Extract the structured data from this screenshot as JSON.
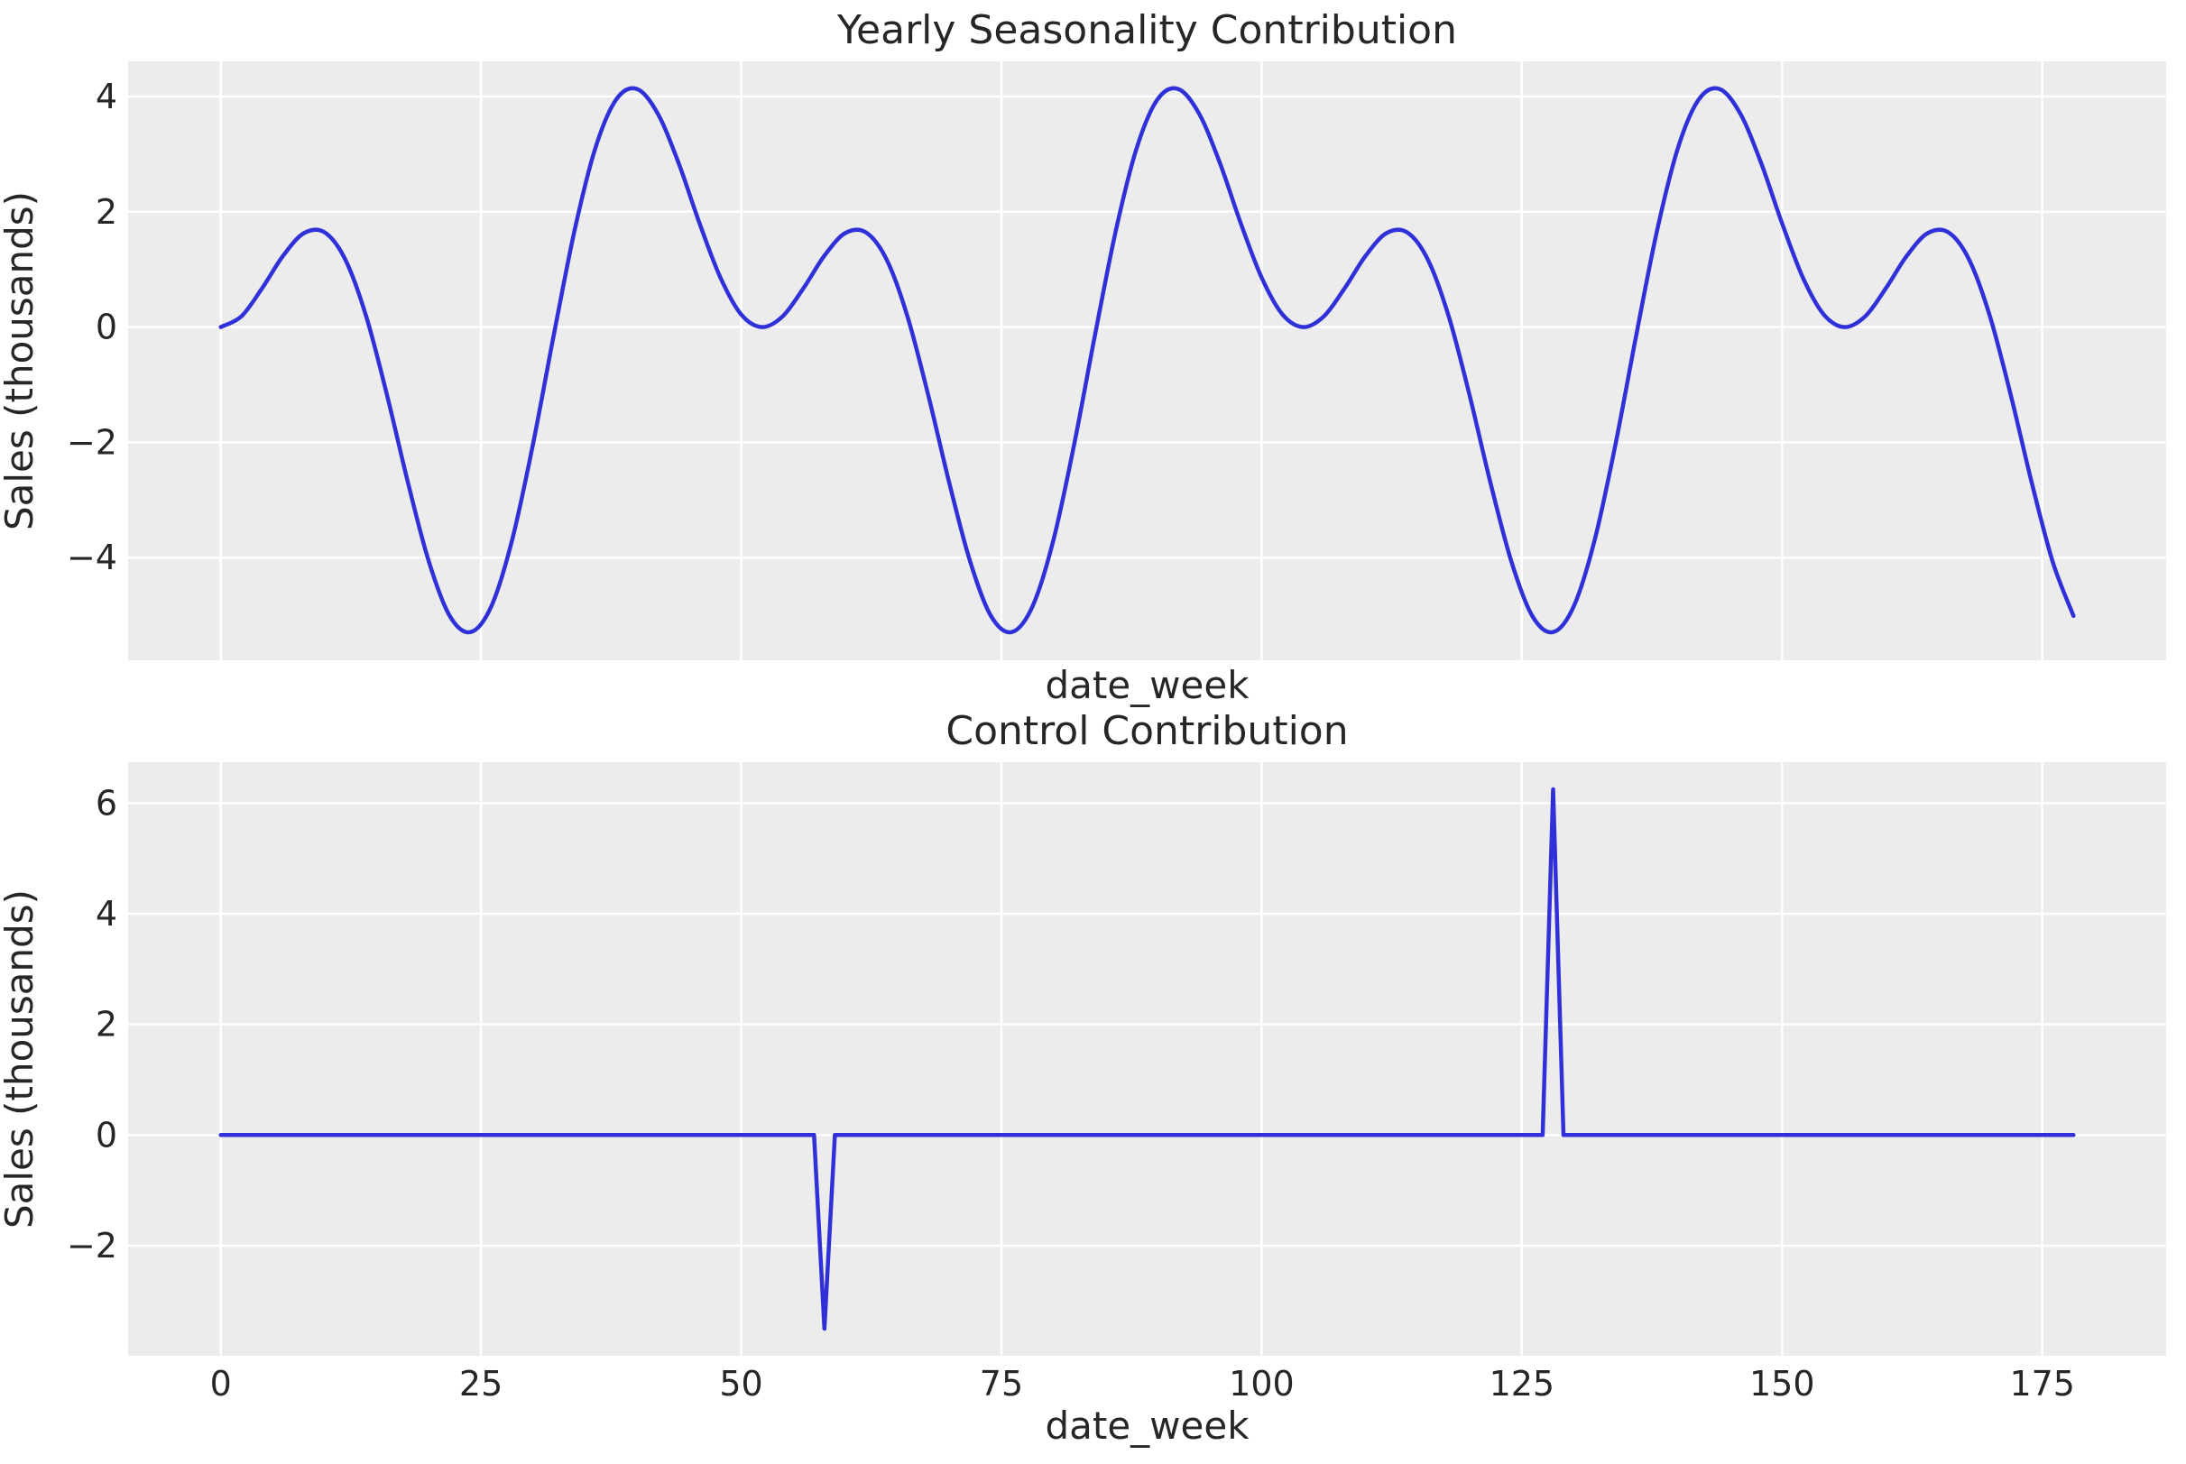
{
  "figure": {
    "background_color": "#ffffff",
    "axes_background_color": "#ececec",
    "grid_color": "#ffffff",
    "line_color": "#3030d8",
    "text_color": "#262626"
  },
  "chart_data": [
    {
      "type": "line",
      "title": "Yearly Seasonality Contribution",
      "xlabel": "date_week",
      "ylabel": "Sales (thousands)",
      "xlim": [
        -8.9,
        186.9
      ],
      "ylim": [
        -5.78,
        4.61
      ],
      "grid": true,
      "legend": null,
      "xtick_values": [
        0,
        25,
        50,
        75,
        100,
        125,
        150,
        175
      ],
      "xtick_labels": [],
      "xtick_labels_visible": false,
      "ytick_values": [
        -4,
        -2,
        0,
        2,
        4
      ],
      "ytick_labels": [
        "−4",
        "−2",
        "0",
        "2",
        "4"
      ],
      "series": [
        {
          "name": "yearly_seasonality",
          "color": "#3030d8",
          "smooth": true,
          "x": [
            0,
            2,
            4,
            6,
            8,
            10,
            12,
            14,
            16,
            18,
            20,
            22,
            24,
            26,
            28,
            30,
            32,
            34,
            36,
            38,
            40,
            42,
            44,
            46,
            48,
            50,
            52,
            54,
            56,
            58,
            60,
            62,
            64,
            66,
            68,
            70,
            72,
            74,
            76,
            78,
            80,
            82,
            84,
            86,
            88,
            90,
            92,
            94,
            96,
            98,
            100,
            102,
            104,
            106,
            108,
            110,
            112,
            114,
            116,
            118,
            120,
            122,
            124,
            126,
            128,
            130,
            132,
            134,
            136,
            138,
            140,
            142,
            144,
            146,
            148,
            150,
            152,
            154,
            156,
            158,
            160,
            162,
            164,
            166,
            168,
            170,
            172,
            174,
            176,
            178
          ],
          "y": [
            0,
            0.19,
            0.68,
            1.24,
            1.63,
            1.64,
            1.16,
            0.17,
            -1.2,
            -2.71,
            -4.07,
            -5.01,
            -5.29,
            -4.84,
            -3.69,
            -2.03,
            -0.13,
            1.68,
            3.11,
            3.95,
            4.13,
            3.7,
            2.84,
            1.8,
            0.86,
            0.22,
            0,
            0.19,
            0.68,
            1.24,
            1.63,
            1.64,
            1.16,
            0.17,
            -1.2,
            -2.71,
            -4.07,
            -5.01,
            -5.29,
            -4.84,
            -3.69,
            -2.03,
            -0.13,
            1.68,
            3.11,
            3.95,
            4.13,
            3.7,
            2.84,
            1.8,
            0.86,
            0.22,
            0,
            0.19,
            0.68,
            1.24,
            1.63,
            1.64,
            1.16,
            0.17,
            -1.2,
            -2.71,
            -4.07,
            -5.01,
            -5.29,
            -4.84,
            -3.69,
            -2.03,
            -0.13,
            1.68,
            3.11,
            3.95,
            4.13,
            3.7,
            2.84,
            1.8,
            0.86,
            0.22,
            0,
            0.19,
            0.68,
            1.24,
            1.63,
            1.64,
            1.16,
            0.17,
            -1.2,
            -2.71,
            -4.07,
            -5.01
          ]
        }
      ]
    },
    {
      "type": "line",
      "title": "Control Contribution",
      "xlabel": "date_week",
      "ylabel": "Sales (thousands)",
      "xlim": [
        -8.9,
        186.9
      ],
      "ylim": [
        -3.99,
        6.74
      ],
      "grid": true,
      "legend": null,
      "xtick_values": [
        0,
        25,
        50,
        75,
        100,
        125,
        150,
        175
      ],
      "xtick_labels": [
        "0",
        "25",
        "50",
        "75",
        "100",
        "125",
        "150",
        "175"
      ],
      "xtick_labels_visible": true,
      "ytick_values": [
        -2,
        0,
        2,
        4,
        6
      ],
      "ytick_labels": [
        "−2",
        "0",
        "2",
        "4",
        "6"
      ],
      "series": [
        {
          "name": "control",
          "color": "#3030d8",
          "smooth": false,
          "x": [
            0,
            57,
            58,
            59,
            127,
            128,
            129,
            178
          ],
          "y": [
            0,
            0,
            -3.5,
            0,
            0,
            6.25,
            0,
            0
          ]
        }
      ]
    }
  ]
}
